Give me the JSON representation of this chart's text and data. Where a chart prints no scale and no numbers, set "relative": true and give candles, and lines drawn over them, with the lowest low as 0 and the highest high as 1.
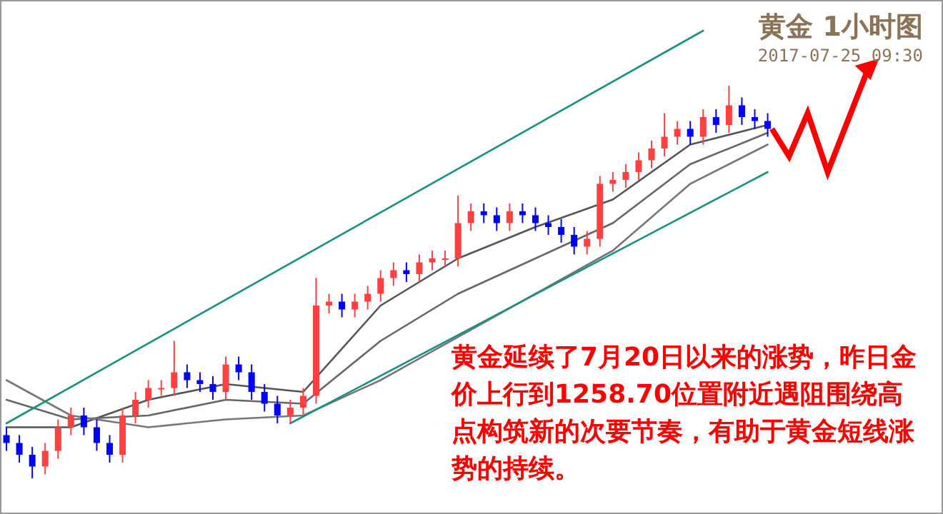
{
  "chart_data": {
    "type": "candlestick",
    "title": "黄金 1小时图",
    "subtitle": "2017-07-25 09:30",
    "relative": true,
    "annotations": [
      "黄金延续了7月20日以来的涨势，昨日金价上行到1258.70位置附近遇阻围绕高点构筑新的次要节奏，有助于黄金短线涨势的持续。"
    ],
    "categories": [
      null,
      null,
      null,
      null,
      null,
      null,
      null,
      null,
      null,
      null,
      null,
      null,
      null,
      null,
      null,
      null,
      null,
      null,
      null,
      null,
      null,
      null,
      null,
      null,
      null,
      null,
      null,
      null,
      null,
      null,
      null,
      null,
      null,
      null,
      null,
      null,
      null,
      null,
      null,
      null,
      null,
      null,
      null,
      null,
      null,
      null,
      null,
      null,
      null,
      null,
      null,
      null,
      null,
      null,
      null,
      null,
      null,
      null,
      null,
      null
    ],
    "ohlc": [
      [
        0.11,
        0.13,
        0.07,
        0.09
      ],
      [
        0.09,
        0.11,
        0.04,
        0.06
      ],
      [
        0.06,
        0.08,
        0.0,
        0.03
      ],
      [
        0.03,
        0.09,
        0.01,
        0.07
      ],
      [
        0.07,
        0.15,
        0.05,
        0.13
      ],
      [
        0.13,
        0.18,
        0.11,
        0.16
      ],
      [
        0.16,
        0.18,
        0.11,
        0.13
      ],
      [
        0.13,
        0.15,
        0.07,
        0.09
      ],
      [
        0.09,
        0.11,
        0.04,
        0.06
      ],
      [
        0.06,
        0.18,
        0.04,
        0.16
      ],
      [
        0.16,
        0.22,
        0.14,
        0.2
      ],
      [
        0.2,
        0.25,
        0.18,
        0.23
      ],
      [
        0.23,
        0.25,
        0.21,
        0.23
      ],
      [
        0.23,
        0.35,
        0.21,
        0.27
      ],
      [
        0.27,
        0.29,
        0.23,
        0.25
      ],
      [
        0.25,
        0.27,
        0.22,
        0.24
      ],
      [
        0.24,
        0.26,
        0.2,
        0.22
      ],
      [
        0.22,
        0.31,
        0.2,
        0.29
      ],
      [
        0.29,
        0.31,
        0.25,
        0.27
      ],
      [
        0.27,
        0.29,
        0.2,
        0.22
      ],
      [
        0.22,
        0.24,
        0.17,
        0.19
      ],
      [
        0.19,
        0.21,
        0.14,
        0.16
      ],
      [
        0.16,
        0.2,
        0.14,
        0.18
      ],
      [
        0.18,
        0.23,
        0.16,
        0.21
      ],
      [
        0.21,
        0.51,
        0.19,
        0.44
      ],
      [
        0.44,
        0.47,
        0.42,
        0.45
      ],
      [
        0.45,
        0.47,
        0.41,
        0.43
      ],
      [
        0.43,
        0.47,
        0.41,
        0.45
      ],
      [
        0.45,
        0.49,
        0.43,
        0.47
      ],
      [
        0.47,
        0.53,
        0.45,
        0.51
      ],
      [
        0.51,
        0.55,
        0.49,
        0.53
      ],
      [
        0.53,
        0.55,
        0.5,
        0.52
      ],
      [
        0.52,
        0.57,
        0.5,
        0.55
      ],
      [
        0.55,
        0.58,
        0.53,
        0.56
      ],
      [
        0.56,
        0.58,
        0.54,
        0.56
      ],
      [
        0.56,
        0.72,
        0.54,
        0.65
      ],
      [
        0.65,
        0.7,
        0.63,
        0.68
      ],
      [
        0.68,
        0.7,
        0.65,
        0.67
      ],
      [
        0.67,
        0.69,
        0.63,
        0.65
      ],
      [
        0.65,
        0.7,
        0.63,
        0.68
      ],
      [
        0.68,
        0.7,
        0.65,
        0.67
      ],
      [
        0.67,
        0.69,
        0.63,
        0.65
      ],
      [
        0.65,
        0.67,
        0.62,
        0.64
      ],
      [
        0.64,
        0.66,
        0.6,
        0.62
      ],
      [
        0.62,
        0.64,
        0.57,
        0.59
      ],
      [
        0.59,
        0.63,
        0.57,
        0.61
      ],
      [
        0.61,
        0.77,
        0.59,
        0.75
      ],
      [
        0.75,
        0.78,
        0.73,
        0.76
      ],
      [
        0.76,
        0.8,
        0.74,
        0.78
      ],
      [
        0.78,
        0.83,
        0.76,
        0.81
      ],
      [
        0.81,
        0.86,
        0.79,
        0.84
      ],
      [
        0.84,
        0.93,
        0.82,
        0.87
      ],
      [
        0.87,
        0.91,
        0.85,
        0.89
      ],
      [
        0.89,
        0.91,
        0.85,
        0.87
      ],
      [
        0.87,
        0.94,
        0.85,
        0.92
      ],
      [
        0.92,
        0.94,
        0.88,
        0.9
      ],
      [
        0.9,
        1.0,
        0.88,
        0.95
      ],
      [
        0.95,
        0.97,
        0.9,
        0.92
      ],
      [
        0.92,
        0.94,
        0.89,
        0.91
      ],
      [
        0.91,
        0.93,
        0.87,
        0.89
      ]
    ],
    "colors": [
      "#0000ff",
      "#0000ff",
      "#0000ff",
      "#ff4040",
      "#ff4040",
      "#ff4040",
      "#0000ff",
      "#0000ff",
      "#0000ff",
      "#ff4040",
      "#ff4040",
      "#ff4040",
      "#ff4040",
      "#ff4040",
      "#0000ff",
      "#0000ff",
      "#0000ff",
      "#ff4040",
      "#0000ff",
      "#0000ff",
      "#0000ff",
      "#0000ff",
      "#ff4040",
      "#ff4040",
      "#ff4040",
      "#ff4040",
      "#0000ff",
      "#ff4040",
      "#ff4040",
      "#ff4040",
      "#ff4040",
      "#0000ff",
      "#ff4040",
      "#ff4040",
      "#ff4040",
      "#ff4040",
      "#ff4040",
      "#0000ff",
      "#0000ff",
      "#ff4040",
      "#0000ff",
      "#0000ff",
      "#0000ff",
      "#0000ff",
      "#0000ff",
      "#ff4040",
      "#ff4040",
      "#ff4040",
      "#ff4040",
      "#ff4040",
      "#ff4040",
      "#ff4040",
      "#ff4040",
      "#0000ff",
      "#ff4040",
      "#0000ff",
      "#ff4040",
      "#0000ff",
      "#0000ff",
      "#0000ff"
    ],
    "series": [
      {
        "type": "line",
        "color": "#555555",
        "values": [
          0.13,
          null,
          null,
          null,
          null,
          0.13,
          null,
          null,
          null,
          null,
          null,
          0.2,
          null,
          null,
          null,
          null,
          null,
          0.24,
          null,
          null,
          null,
          null,
          null,
          0.22,
          null,
          null,
          null,
          null,
          null,
          0.44,
          null,
          null,
          null,
          null,
          null,
          0.56,
          null,
          null,
          null,
          null,
          null,
          0.64,
          null,
          null,
          null,
          null,
          null,
          0.71,
          null,
          null,
          null,
          null,
          null,
          0.85,
          null,
          null,
          null,
          null,
          null,
          0.9
        ]
      },
      {
        "type": "line",
        "color": "#666666",
        "values": [
          0.2,
          null,
          null,
          null,
          null,
          0.15,
          null,
          null,
          null,
          null,
          null,
          0.16,
          null,
          null,
          null,
          null,
          null,
          0.2,
          null,
          null,
          null,
          null,
          null,
          0.19,
          null,
          null,
          null,
          null,
          null,
          0.35,
          null,
          null,
          null,
          null,
          null,
          0.47,
          null,
          null,
          null,
          null,
          null,
          0.56,
          null,
          null,
          null,
          null,
          null,
          0.65,
          null,
          null,
          null,
          null,
          null,
          0.8,
          null,
          null,
          null,
          null,
          null,
          0.88
        ]
      },
      {
        "type": "line",
        "color": "#777777",
        "values": [
          0.25,
          null,
          null,
          null,
          null,
          0.16,
          null,
          null,
          null,
          null,
          null,
          0.13,
          null,
          null,
          null,
          null,
          null,
          0.15,
          null,
          null,
          null,
          null,
          null,
          0.16,
          null,
          null,
          null,
          null,
          null,
          0.25,
          null,
          null,
          null,
          null,
          null,
          0.36,
          null,
          null,
          null,
          null,
          null,
          0.47,
          null,
          null,
          null,
          null,
          null,
          0.58,
          null,
          null,
          null,
          null,
          null,
          0.75,
          null,
          null,
          null,
          null,
          null,
          0.85
        ]
      },
      {
        "type": "line",
        "color": "#1a9080",
        "values": [
          0.14,
          null,
          null,
          null,
          null,
          null,
          null,
          null,
          null,
          null,
          null,
          null,
          null,
          null,
          null,
          null,
          null,
          null,
          null,
          null,
          null,
          null,
          null,
          null,
          null,
          null,
          null,
          null,
          null,
          null,
          null,
          null,
          null,
          null,
          null,
          null,
          null,
          null,
          null,
          null,
          null,
          null,
          null,
          null,
          null,
          null,
          null,
          null,
          null,
          null,
          null,
          null,
          null,
          null,
          1.14,
          null,
          null,
          null,
          null,
          null
        ]
      },
      {
        "type": "line",
        "color": "#1a9080",
        "values": [
          null,
          null,
          null,
          null,
          null,
          null,
          null,
          null,
          null,
          null,
          null,
          null,
          null,
          null,
          null,
          null,
          null,
          null,
          null,
          null,
          null,
          null,
          0.14,
          null,
          null,
          null,
          null,
          null,
          null,
          null,
          null,
          null,
          null,
          null,
          null,
          null,
          null,
          null,
          null,
          null,
          null,
          null,
          null,
          null,
          null,
          null,
          null,
          null,
          null,
          null,
          null,
          null,
          null,
          null,
          null,
          null,
          null,
          null,
          null,
          0.78
        ]
      }
    ]
  }
}
